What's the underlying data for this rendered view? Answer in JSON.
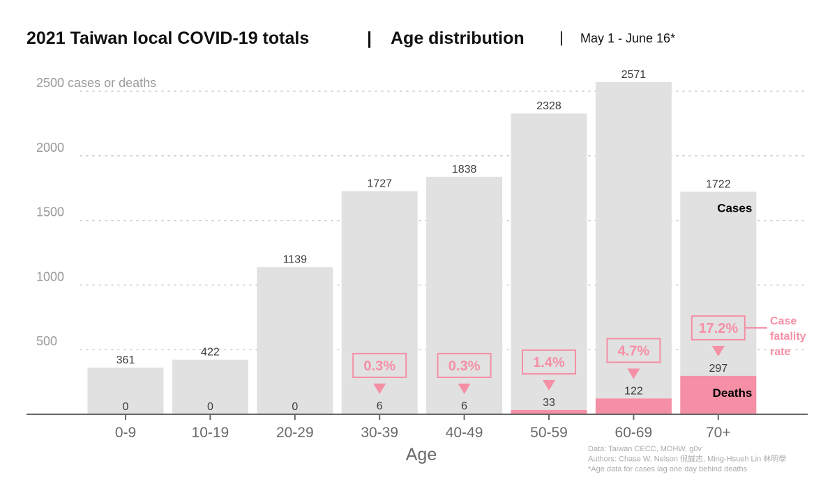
{
  "chart_data": {
    "type": "bar",
    "title": "2021 Taiwan local COVID-19 totals",
    "title_separator": "|",
    "subtitle": "Age distribution",
    "date_range": "May 1 - June 16*",
    "xlabel": "Age",
    "ylabel": "",
    "ylim": [
      0,
      2500
    ],
    "y_ticks": [
      {
        "value": 500,
        "label": "500"
      },
      {
        "value": 1000,
        "label": "1000"
      },
      {
        "value": 1500,
        "label": "1500"
      },
      {
        "value": 2000,
        "label": "2000"
      },
      {
        "value": 2500,
        "label": "2500 cases or deaths"
      }
    ],
    "grid": true,
    "categories": [
      "0-9",
      "10-19",
      "20-29",
      "30-39",
      "40-49",
      "50-59",
      "60-69",
      "70+"
    ],
    "series": [
      {
        "name": "Cases",
        "values": [
          361,
          422,
          1139,
          1727,
          1838,
          2328,
          2571,
          1722
        ]
      },
      {
        "name": "Deaths",
        "values": [
          0,
          0,
          0,
          6,
          6,
          33,
          122,
          297
        ]
      }
    ],
    "case_fatality_rate": [
      "",
      "",
      "",
      "0.3%",
      "0.3%",
      "1.4%",
      "4.7%",
      "17.2%"
    ],
    "case_fatality_label": "Case fatality rate",
    "case_fatality_label_lines": [
      "Case",
      "fatality",
      "rate"
    ],
    "colors": {
      "cases": "#e1e1e1",
      "deaths": "#f58fa5",
      "fatality": "#f58fa5",
      "grid": "#c8c8c8",
      "axis": "#666666",
      "tick_label": "#9a9a9a",
      "bar_label": "#3c3c3c"
    },
    "footnotes": [
      "Data: Taiwan CECC, MOHW, g0v",
      "Authors: Chase W. Nelson 倪誠志, Ming-Hsueh Lin 林明學",
      "*Age data for cases lag one day behind deaths"
    ]
  }
}
